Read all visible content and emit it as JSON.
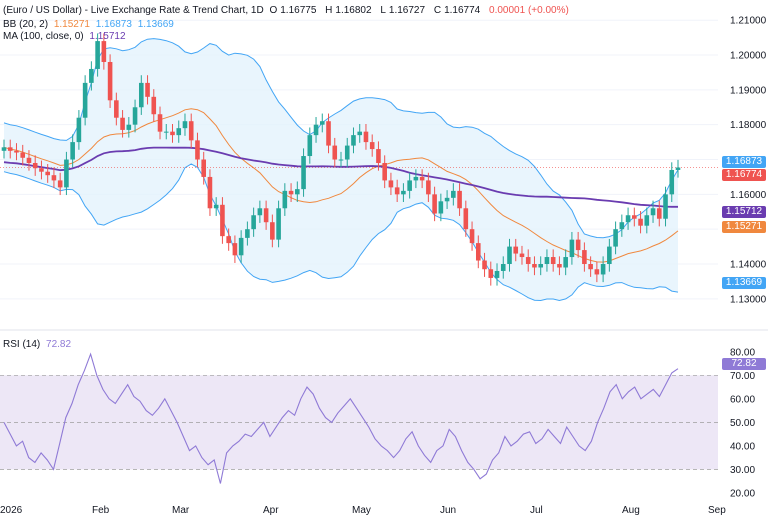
{
  "header": {
    "title": "(Euro / US Dollar) - Live Exchange Rate & Trend Chart, 1D",
    "o_label": "O",
    "o_value": "1.16775",
    "h_label": "H",
    "h_value": "1.16802",
    "l_label": "L",
    "l_value": "1.16727",
    "c_label": "C",
    "c_value": "1.16774",
    "change": "0.00001 (+0.00%)"
  },
  "bb_legend": {
    "name": "BB (20, 2)",
    "v1": "1.15271",
    "v2": "1.16873",
    "v3": "1.13669"
  },
  "ma_legend": {
    "name": "MA (100, close, 0)",
    "v1": "1.15712"
  },
  "rsi_legend": {
    "name": "RSI (14)",
    "v1": "72.82"
  },
  "badges": {
    "bb_upper": "1.16873",
    "last_price": "1.16774",
    "ma": "1.15712",
    "bb_basis": "1.15271",
    "bb_lower": "1.13669",
    "rsi": "72.82"
  },
  "colors": {
    "up": "#26a69a",
    "down": "#ef5350",
    "bb_line": "#42a5f5",
    "bb_fill": "#e3f2fd",
    "bb_basis": "#f0883e",
    "ma": "#6a3cb0",
    "rsi": "#8f7ad6",
    "rsi_band": "#ede7f6",
    "price_badge": "#ef5350",
    "ma_badge": "#6a3cb0",
    "basis_badge": "#f0883e",
    "bb_badge": "#42a5f5"
  },
  "chart_data": [
    {
      "type": "candlestick",
      "title": "(Euro / US Dollar) - Live Exchange Rate & Trend Chart, 1D",
      "x_ticks": [
        "2026",
        "Feb",
        "Mar",
        "Apr",
        "May",
        "Jun",
        "Jul",
        "Aug",
        "Sep"
      ],
      "y_ticks": [
        "1.13000",
        "1.14000",
        "1.15000",
        "1.16000",
        "1.17000",
        "1.18000",
        "1.19000",
        "1.20000",
        "1.21000"
      ],
      "ylim": [
        1.1245,
        1.2135
      ],
      "closes": [
        1.1735,
        1.1725,
        1.172,
        1.1705,
        1.169,
        1.1675,
        1.1665,
        1.1655,
        1.164,
        1.162,
        1.17,
        1.175,
        1.182,
        1.192,
        1.196,
        1.204,
        1.198,
        1.187,
        1.182,
        1.1785,
        1.18,
        1.185,
        1.192,
        1.188,
        1.183,
        1.178,
        1.178,
        1.177,
        1.179,
        1.181,
        1.1755,
        1.17,
        1.165,
        1.156,
        1.157,
        1.148,
        1.146,
        1.1425,
        1.1475,
        1.15,
        1.154,
        1.156,
        1.152,
        1.147,
        1.156,
        1.161,
        1.16,
        1.1615,
        1.171,
        1.177,
        1.18,
        1.181,
        1.174,
        1.17,
        1.17,
        1.174,
        1.177,
        1.178,
        1.175,
        1.173,
        1.169,
        1.164,
        1.162,
        1.16,
        1.161,
        1.164,
        1.165,
        1.164,
        1.16,
        1.1545,
        1.158,
        1.159,
        1.161,
        1.156,
        1.15,
        1.146,
        1.141,
        1.1385,
        1.136,
        1.138,
        1.14,
        1.145,
        1.143,
        1.142,
        1.14,
        1.139,
        1.14,
        1.142,
        1.14,
        1.139,
        1.142,
        1.147,
        1.144,
        1.14,
        1.1385,
        1.137,
        1.14,
        1.145,
        1.15,
        1.152,
        1.154,
        1.153,
        1.151,
        1.154,
        1.156,
        1.153,
        1.16,
        1.167,
        1.1677
      ],
      "series": [
        {
          "name": "BB (20, 2)",
          "values": [
            1.1527,
            1.1687,
            1.1367
          ]
        },
        {
          "name": "MA (100, close, 0)",
          "values": [
            1.1571
          ]
        }
      ]
    },
    {
      "type": "line",
      "title": "RSI (14)",
      "y_ticks": [
        "20.00",
        "30.00",
        "40.00",
        "50.00",
        "60.00",
        "70.00",
        "80.00"
      ],
      "ylim": [
        17,
        85
      ],
      "bands": [
        30,
        50,
        70
      ],
      "series": [
        {
          "name": "RSI (14)",
          "values": [
            50,
            45,
            40,
            42,
            35,
            33,
            37,
            34,
            30,
            41,
            52,
            58,
            66,
            72,
            79,
            70,
            64,
            60,
            58,
            62,
            66,
            61,
            59,
            55,
            53,
            56,
            60,
            55,
            50,
            44,
            38,
            40,
            35,
            32,
            34,
            24,
            37,
            40,
            42,
            45,
            44,
            47,
            50,
            44,
            48,
            52,
            55,
            53,
            60,
            65,
            62,
            56,
            52,
            50,
            54,
            57,
            60,
            56,
            52,
            48,
            43,
            40,
            38,
            35,
            38,
            43,
            46,
            40,
            36,
            33,
            38,
            40,
            47,
            44,
            38,
            33,
            30,
            26,
            28,
            34,
            37,
            44,
            40,
            42,
            45,
            46,
            41,
            43,
            47,
            44,
            41,
            48,
            44,
            40,
            38,
            42,
            50,
            56,
            63,
            66,
            60,
            63,
            65,
            60,
            62,
            64,
            61,
            66,
            71,
            72.82
          ]
        }
      ]
    }
  ]
}
